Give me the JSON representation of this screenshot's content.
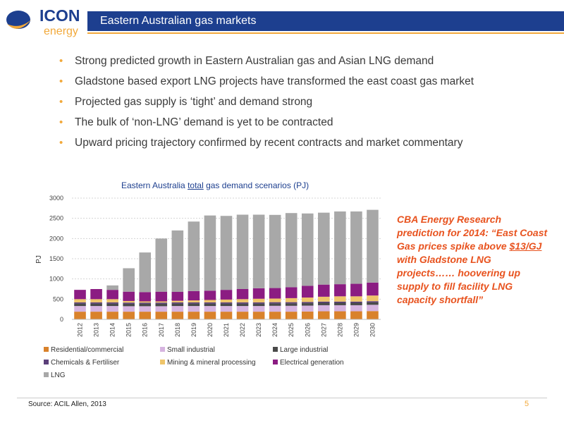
{
  "logo": {
    "word1": "ICON",
    "word2": "energy"
  },
  "header": {
    "title": "Eastern Australian gas markets"
  },
  "bullets": [
    "Strong predicted growth in Eastern Australian gas and Asian LNG demand",
    "Gladstone based export LNG projects have transformed the east coast gas market",
    "Projected gas supply is ‘tight’ and demand strong",
    "The bulk of ‘non-LNG’ demand is yet to be contracted",
    "Upward pricing trajectory confirmed by recent contracts and market commentary"
  ],
  "chart_title": {
    "before": "Eastern Australia ",
    "underlined": "total",
    "after": " gas demand scenarios (PJ)"
  },
  "callout": {
    "before": "CBA Energy Research prediction for 2014: “East Coast Gas prices spike above ",
    "underlined": "$13/GJ",
    "after": " with Gladstone LNG projects…… hoovering up supply to fill facility LNG capacity shortfall”"
  },
  "source": "Source: ACIL Allen, 2013",
  "page_number": "5",
  "chart_data": {
    "type": "bar",
    "stacked": true,
    "ylabel": "PJ",
    "ylim": [
      0,
      3000
    ],
    "yticks": [
      0,
      500,
      1000,
      1500,
      2000,
      2500,
      3000
    ],
    "grid": true,
    "legend_position": "bottom",
    "categories": [
      "2012",
      "2013",
      "2014",
      "2015",
      "2016",
      "2017",
      "2018",
      "2019",
      "2020",
      "2021",
      "2022",
      "2023",
      "2024",
      "2025",
      "2026",
      "2027",
      "2028",
      "2029",
      "2030"
    ],
    "series": [
      {
        "name": "Residential/commercial",
        "color": "#d9822b",
        "values": [
          190,
          190,
          190,
          190,
          190,
          190,
          190,
          190,
          190,
          190,
          190,
          190,
          190,
          190,
          195,
          200,
          200,
          200,
          205
        ]
      },
      {
        "name": "Small industrial",
        "color": "#d6b4e0",
        "values": [
          140,
          140,
          140,
          135,
          135,
          135,
          140,
          140,
          140,
          140,
          140,
          140,
          145,
          145,
          145,
          150,
          150,
          150,
          155
        ]
      },
      {
        "name": "Large industrial",
        "color": "#4a4a4a",
        "values": [
          60,
          60,
          60,
          60,
          60,
          60,
          60,
          60,
          60,
          60,
          60,
          60,
          60,
          60,
          60,
          60,
          60,
          60,
          60
        ]
      },
      {
        "name": "Chemicals & Fertiliser",
        "color": "#5b3f7a",
        "values": [
          30,
          30,
          30,
          30,
          30,
          30,
          30,
          30,
          30,
          30,
          30,
          30,
          30,
          30,
          30,
          30,
          30,
          30,
          30
        ]
      },
      {
        "name": "Mining & mineral processing",
        "color": "#efc56a",
        "values": [
          80,
          80,
          80,
          40,
          30,
          30,
          40,
          50,
          60,
          70,
          80,
          90,
          90,
          100,
          110,
          120,
          130,
          130,
          140
        ]
      },
      {
        "name": "Electrical generation",
        "color": "#8b1c82",
        "values": [
          230,
          250,
          230,
          230,
          230,
          240,
          220,
          230,
          230,
          240,
          250,
          260,
          260,
          270,
          290,
          300,
          300,
          310,
          320
        ]
      },
      {
        "name": "LNG",
        "color": "#a8a8a8",
        "values": [
          0,
          0,
          110,
          580,
          980,
          1315,
          1520,
          1720,
          1860,
          1830,
          1840,
          1820,
          1810,
          1835,
          1790,
          1780,
          1800,
          1790,
          1800
        ]
      }
    ]
  },
  "colors": {
    "title_bar": "#1d3f8f",
    "accent": "#f2a93b",
    "callout": "#e8531f"
  }
}
